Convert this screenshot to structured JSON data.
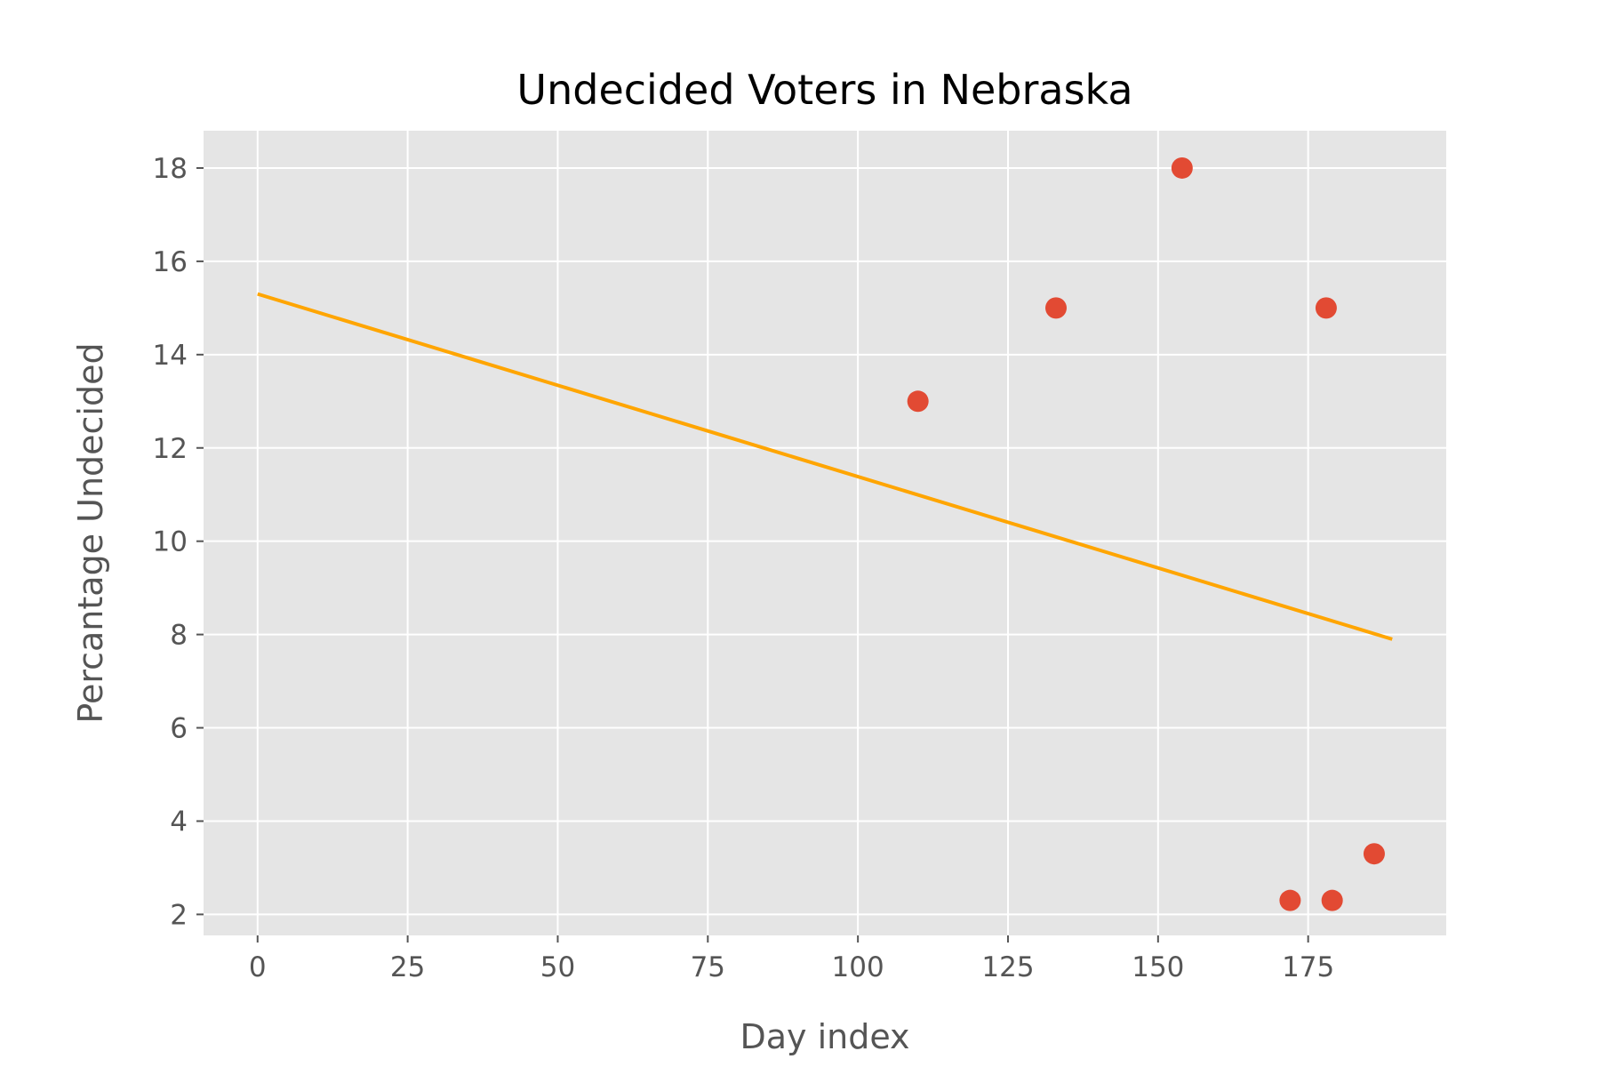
{
  "chart_data": {
    "type": "scatter",
    "title": "Undecided Voters in Nebraska",
    "xlabel": "Day index",
    "ylabel": "Percantage Undecided",
    "xlim": [
      -9,
      198
    ],
    "ylim": [
      1.55,
      18.8
    ],
    "xticks": [
      0,
      25,
      50,
      75,
      100,
      125,
      150,
      175
    ],
    "yticks": [
      2,
      4,
      6,
      8,
      10,
      12,
      14,
      16,
      18
    ],
    "grid": true,
    "background_color": "#e5e5e5",
    "series": [
      {
        "type": "scatter",
        "color": "#e24a33",
        "x": [
          110,
          133,
          154,
          172,
          178,
          179,
          186
        ],
        "y": [
          13,
          15,
          18,
          2.3,
          15,
          2.3,
          3.3
        ]
      },
      {
        "type": "line",
        "color": "#ffa500",
        "x": [
          0,
          189
        ],
        "y": [
          15.3,
          7.9
        ]
      }
    ]
  }
}
